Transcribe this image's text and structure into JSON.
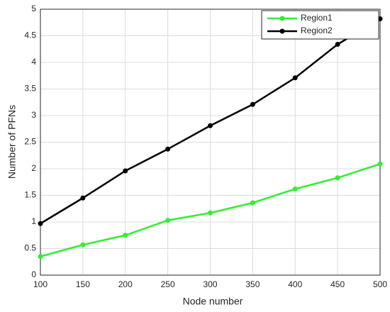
{
  "chart_data": {
    "type": "line",
    "x_label": "Node number",
    "y_label": "Number of PFNs",
    "x": [
      100,
      150,
      200,
      250,
      300,
      350,
      400,
      450,
      500
    ],
    "series": [
      {
        "name": "Region1",
        "color": "#33ee33",
        "values": [
          0.35,
          0.57,
          0.75,
          1.03,
          1.17,
          1.36,
          1.62,
          1.83,
          2.09
        ]
      },
      {
        "name": "Region2",
        "color": "#000000",
        "values": [
          0.97,
          1.45,
          1.96,
          2.37,
          2.81,
          3.21,
          3.71,
          4.34,
          4.82
        ]
      }
    ],
    "xlim": [
      100,
      500
    ],
    "xticks": [
      100,
      150,
      200,
      250,
      300,
      350,
      400,
      450,
      500
    ],
    "ylim": [
      0,
      5
    ],
    "yticks": [
      0,
      0.5,
      1,
      1.5,
      2,
      2.5,
      3,
      3.5,
      4,
      4.5,
      5
    ],
    "grid": true,
    "legend": "top-right"
  }
}
